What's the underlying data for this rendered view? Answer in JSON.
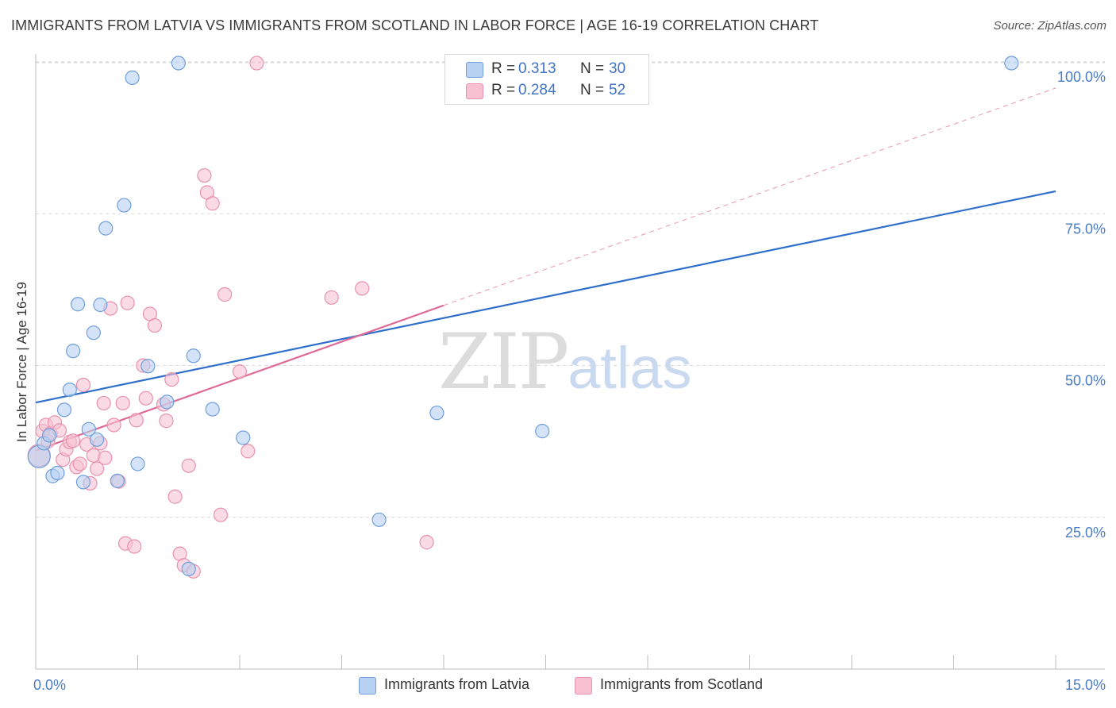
{
  "title": "IMMIGRANTS FROM LATVIA VS IMMIGRANTS FROM SCOTLAND IN LABOR FORCE | AGE 16-19 CORRELATION CHART",
  "source": "Source: ZipAtlas.com",
  "watermark": {
    "zip": "ZIP",
    "atlas": "atlas"
  },
  "legend": {
    "latvia": {
      "r_label": "R =",
      "r_value": "0.313",
      "n_label": "N =",
      "n_value": "30"
    },
    "scotland": {
      "r_label": "R =",
      "r_value": "0.284",
      "n_label": "N =",
      "n_value": "52"
    }
  },
  "bottom_legend": {
    "latvia": "Immigrants from Latvia",
    "scotland": "Immigrants from Scotland"
  },
  "colors": {
    "latvia_fill": "#b7d1f2",
    "latvia_stroke": "#6f9fdc",
    "latvia_line": "#2f6fcc",
    "scotland_fill": "#f7c1d2",
    "scotland_stroke": "#e892ad",
    "scotland_line": "#e06a96",
    "tick": "#4a7cc6",
    "grid": "#d9d9d9"
  },
  "chart_data": {
    "type": "scatter",
    "title": "IMMIGRANTS FROM LATVIA VS IMMIGRANTS FROM SCOTLAND IN LABOR FORCE | AGE 16-19 CORRELATION CHART",
    "xlabel": "",
    "ylabel": "In Labor Force | Age 16-19",
    "xlim": [
      0,
      15
    ],
    "ylim": [
      0,
      105
    ],
    "x_tick_labels": [
      "0.0%",
      "15.0%"
    ],
    "y_ticks": [
      25,
      50,
      75,
      100
    ],
    "y_tick_labels": [
      "25.0%",
      "50.0%",
      "75.0%",
      "100.0%"
    ],
    "grid": true,
    "legend_position": "top-center",
    "series": [
      {
        "name": "Immigrants from Latvia",
        "R": 0.313,
        "N": 30,
        "points": [
          {
            "x": 0.05,
            "y": 35.0
          },
          {
            "x": 0.12,
            "y": 37.2
          },
          {
            "x": 0.2,
            "y": 38.5
          },
          {
            "x": 0.25,
            "y": 31.8
          },
          {
            "x": 0.32,
            "y": 32.3
          },
          {
            "x": 0.42,
            "y": 42.7
          },
          {
            "x": 0.5,
            "y": 46.0
          },
          {
            "x": 0.55,
            "y": 52.4
          },
          {
            "x": 0.62,
            "y": 60.1
          },
          {
            "x": 0.7,
            "y": 30.8
          },
          {
            "x": 0.78,
            "y": 39.5
          },
          {
            "x": 0.85,
            "y": 55.4
          },
          {
            "x": 0.9,
            "y": 37.8
          },
          {
            "x": 0.95,
            "y": 60.0
          },
          {
            "x": 1.03,
            "y": 72.6
          },
          {
            "x": 1.2,
            "y": 31.0
          },
          {
            "x": 1.3,
            "y": 76.4
          },
          {
            "x": 1.42,
            "y": 97.4
          },
          {
            "x": 1.5,
            "y": 33.8
          },
          {
            "x": 1.65,
            "y": 49.9
          },
          {
            "x": 1.93,
            "y": 44.0
          },
          {
            "x": 2.1,
            "y": 99.8
          },
          {
            "x": 2.25,
            "y": 16.5
          },
          {
            "x": 2.32,
            "y": 51.6
          },
          {
            "x": 2.6,
            "y": 42.8
          },
          {
            "x": 3.05,
            "y": 38.1
          },
          {
            "x": 5.05,
            "y": 24.6
          },
          {
            "x": 5.9,
            "y": 42.2
          },
          {
            "x": 7.45,
            "y": 39.2
          },
          {
            "x": 14.35,
            "y": 99.8
          }
        ],
        "trendline": {
          "x": [
            0,
            15
          ],
          "y": [
            43.9,
            78.7
          ]
        }
      },
      {
        "name": "Immigrants from Scotland",
        "R": 0.284,
        "N": 52,
        "points": [
          {
            "x": 0.05,
            "y": 35.2
          },
          {
            "x": 0.1,
            "y": 39.2
          },
          {
            "x": 0.15,
            "y": 40.2
          },
          {
            "x": 0.18,
            "y": 37.5
          },
          {
            "x": 0.22,
            "y": 38.8
          },
          {
            "x": 0.28,
            "y": 40.6
          },
          {
            "x": 0.35,
            "y": 39.3
          },
          {
            "x": 0.4,
            "y": 34.5
          },
          {
            "x": 0.45,
            "y": 36.2
          },
          {
            "x": 0.5,
            "y": 37.4
          },
          {
            "x": 0.55,
            "y": 37.6
          },
          {
            "x": 0.6,
            "y": 33.3
          },
          {
            "x": 0.65,
            "y": 33.8
          },
          {
            "x": 0.7,
            "y": 46.8
          },
          {
            "x": 0.75,
            "y": 37.0
          },
          {
            "x": 0.8,
            "y": 30.6
          },
          {
            "x": 0.85,
            "y": 35.2
          },
          {
            "x": 0.9,
            "y": 33.0
          },
          {
            "x": 0.95,
            "y": 37.2
          },
          {
            "x": 1.0,
            "y": 43.8
          },
          {
            "x": 1.02,
            "y": 34.8
          },
          {
            "x": 1.1,
            "y": 59.4
          },
          {
            "x": 1.15,
            "y": 40.2
          },
          {
            "x": 1.22,
            "y": 30.9
          },
          {
            "x": 1.28,
            "y": 43.8
          },
          {
            "x": 1.32,
            "y": 20.7
          },
          {
            "x": 1.35,
            "y": 60.3
          },
          {
            "x": 1.45,
            "y": 20.2
          },
          {
            "x": 1.48,
            "y": 41.0
          },
          {
            "x": 1.58,
            "y": 50.0
          },
          {
            "x": 1.62,
            "y": 44.6
          },
          {
            "x": 1.68,
            "y": 58.5
          },
          {
            "x": 1.75,
            "y": 56.6
          },
          {
            "x": 1.88,
            "y": 43.6
          },
          {
            "x": 1.92,
            "y": 40.9
          },
          {
            "x": 2.0,
            "y": 47.7
          },
          {
            "x": 2.05,
            "y": 28.4
          },
          {
            "x": 2.12,
            "y": 19.0
          },
          {
            "x": 2.18,
            "y": 17.1
          },
          {
            "x": 2.25,
            "y": 33.5
          },
          {
            "x": 2.32,
            "y": 16.1
          },
          {
            "x": 2.48,
            "y": 81.3
          },
          {
            "x": 2.52,
            "y": 78.5
          },
          {
            "x": 2.6,
            "y": 76.7
          },
          {
            "x": 2.72,
            "y": 25.4
          },
          {
            "x": 2.78,
            "y": 61.7
          },
          {
            "x": 3.0,
            "y": 49.0
          },
          {
            "x": 3.12,
            "y": 35.9
          },
          {
            "x": 3.25,
            "y": 99.8
          },
          {
            "x": 4.35,
            "y": 61.2
          },
          {
            "x": 4.8,
            "y": 62.7
          },
          {
            "x": 5.75,
            "y": 20.9
          }
        ],
        "trendline": {
          "x": [
            0,
            6.0
          ],
          "y": [
            36.0,
            59.9
          ]
        },
        "trendline_extension": {
          "x": [
            6.0,
            15
          ],
          "y": [
            59.9,
            95.7
          ]
        }
      }
    ]
  }
}
